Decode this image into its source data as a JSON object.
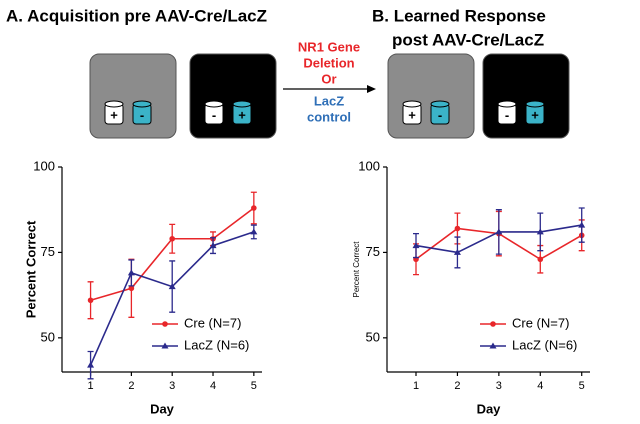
{
  "panels": {
    "a_title": "A. Acquisition pre AAV-Cre/LacZ",
    "b_title": [
      "B. Learned Response",
      "post AAV-Cre/LacZ"
    ]
  },
  "diagram": {
    "arrow_text": [
      {
        "text": "NR1 Gene",
        "color": "#e8262a"
      },
      {
        "text": "Deletion",
        "color": "#e8262a"
      },
      {
        "text": "Or",
        "color": "#e8262a"
      },
      {
        "text": "LacZ",
        "color": "#2f6fb7"
      },
      {
        "text": "control",
        "color": "#2f6fb7"
      }
    ],
    "boxes": [
      {
        "color": "#8c8c8c",
        "cylinders": [
          "+",
          "-"
        ]
      },
      {
        "color": "#000000",
        "cylinders": [
          "-",
          "+"
        ]
      },
      {
        "color": "#8c8c8c",
        "cylinders": [
          "+",
          "-"
        ]
      },
      {
        "color": "#000000",
        "cylinders": [
          "-",
          "+"
        ]
      }
    ]
  },
  "chart_data": [
    {
      "type": "line",
      "xlabel": "Day",
      "ylabel": "Percent Correct",
      "x": [
        1,
        2,
        3,
        4,
        5
      ],
      "xlim": [
        0.3,
        5.2
      ],
      "xticks": [
        1,
        2,
        3,
        4,
        5
      ],
      "ylim": [
        40,
        100
      ],
      "yticks": [
        50,
        75,
        100
      ],
      "legend": "lower right",
      "series": [
        {
          "name": "Cre (N=7)",
          "color": "#e8262a",
          "marker": "circle",
          "values": [
            61,
            64.5,
            79,
            79,
            88
          ],
          "errors": [
            5.4,
            8.5,
            4.2,
            2,
            4.6
          ]
        },
        {
          "name": "LacZ (N=6)",
          "color": "#2b2a8c",
          "marker": "triangle",
          "values": [
            42,
            69,
            65,
            77,
            81
          ],
          "errors": [
            4,
            3.8,
            7.5,
            2.3,
            2
          ]
        }
      ]
    },
    {
      "type": "line",
      "xlabel": "Day",
      "ylabel": "Percent Correct",
      "x": [
        1,
        2,
        3,
        4,
        5
      ],
      "xlim": [
        0.3,
        5.2
      ],
      "xticks": [
        1,
        2,
        3,
        4,
        5
      ],
      "ylim": [
        40,
        100
      ],
      "yticks": [
        50,
        75,
        100
      ],
      "legend": "lower right",
      "series": [
        {
          "name": "Cre (N=7)",
          "color": "#e8262a",
          "marker": "circle",
          "values": [
            73,
            82,
            80.5,
            73,
            80
          ],
          "errors": [
            4.5,
            4.5,
            6.5,
            4,
            4.5
          ]
        },
        {
          "name": "LacZ (N=6)",
          "color": "#2b2a8c",
          "marker": "triangle",
          "values": [
            77,
            75,
            81,
            81,
            83
          ],
          "errors": [
            3.5,
            4.5,
            6.5,
            5.5,
            5
          ]
        }
      ]
    }
  ]
}
